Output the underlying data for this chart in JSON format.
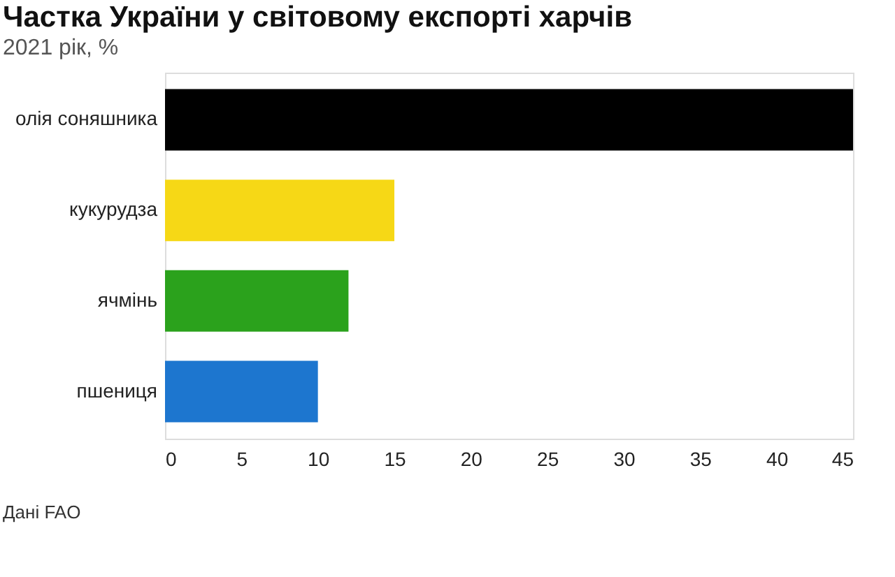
{
  "chart_data": {
    "type": "bar",
    "orientation": "horizontal",
    "title": "Частка України у світовому експорті харчів",
    "subtitle": "2021 рік, %",
    "categories": [
      "олія соняшника",
      "кукурудза",
      "ячмінь",
      "пшениця"
    ],
    "values": [
      45,
      15,
      12,
      10
    ],
    "colors": [
      "#000000",
      "#f6d816",
      "#2ba21c",
      "#1d76cf"
    ],
    "xlim": [
      0,
      45
    ],
    "xticks": [
      0,
      5,
      10,
      15,
      20,
      25,
      30,
      35,
      40,
      45
    ],
    "grid": false,
    "annotations": [
      "Дані FAO"
    ]
  }
}
